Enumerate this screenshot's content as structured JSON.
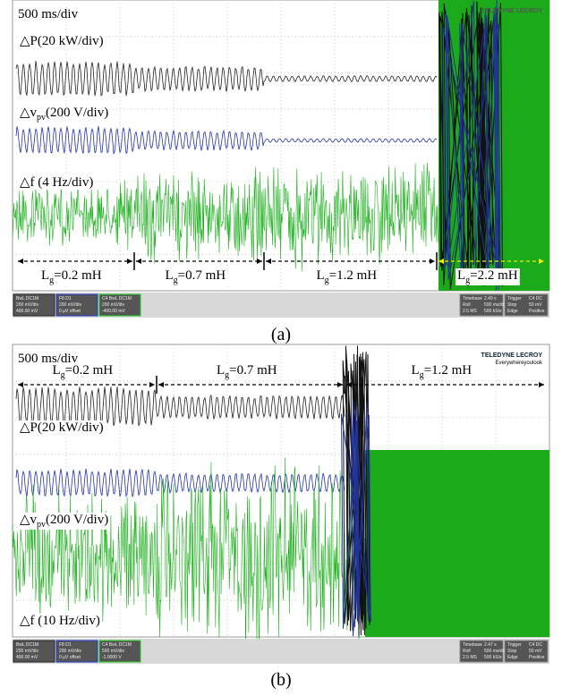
{
  "panels": [
    {
      "label": "(a)",
      "timebase": "500 ms/div",
      "brand": "TELEDYNE LECROY",
      "traces": [
        [
          {
            "t": "△P"
          },
          {
            "t": "(20 kW/div)"
          }
        ],
        [
          {
            "t": "△v"
          },
          {
            "t": "pv",
            "sub": true
          },
          {
            "t": "(200 V/div)"
          }
        ],
        [
          {
            "t": "△f"
          },
          {
            "t": " (4 Hz/div)"
          }
        ]
      ],
      "segments": [
        [
          {
            "t": "L"
          },
          {
            "t": "g",
            "sub": true
          },
          {
            "t": "=0.2 mH"
          }
        ],
        [
          {
            "t": "L"
          },
          {
            "t": "g",
            "sub": true
          },
          {
            "t": "=0.7 mH"
          }
        ],
        [
          {
            "t": "L"
          },
          {
            "t": "g",
            "sub": true
          },
          {
            "t": "=1.2 mH"
          }
        ],
        [
          {
            "t": "L"
          },
          {
            "t": "g",
            "sub": true
          },
          {
            "t": "=2.2 mH"
          }
        ]
      ],
      "status_left": [
        [
          "BwL DC1M",
          "200 mV/div",
          "400.00 mV"
        ],
        [
          "F8 D1",
          "200 mV/div",
          "0 µV offset"
        ],
        [
          "C4 BwL DC1M",
          "200 mV/div",
          "-400.00 mV"
        ]
      ],
      "status_right": [
        [
          "Timebase",
          "2.49 s",
          "Roll",
          "500 ms/div",
          "2.5 MS",
          "500 kS/s"
        ],
        [
          "Trigger",
          "C4 DC",
          "Stop",
          "50 mV",
          "Edge",
          "Positive"
        ]
      ]
    },
    {
      "label": "(b)",
      "timebase": "500 ms/div",
      "brand": "TELEDYNE LECROY",
      "slogan": "Everywhereyoulook",
      "traces": [
        [
          {
            "t": "△P"
          },
          {
            "t": "(20 kW/div)"
          }
        ],
        [
          {
            "t": "△v"
          },
          {
            "t": "pv",
            "sub": true
          },
          {
            "t": "(200 V/div)"
          }
        ],
        [
          {
            "t": "△f"
          },
          {
            "t": " (10 Hz/div)"
          }
        ]
      ],
      "segments": [
        [
          {
            "t": "L"
          },
          {
            "t": "g",
            "sub": true
          },
          {
            "t": "=0.2 mH"
          }
        ],
        [
          {
            "t": "L"
          },
          {
            "t": "g",
            "sub": true
          },
          {
            "t": "=0.7 mH"
          }
        ],
        [
          {
            "t": "L"
          },
          {
            "t": "g",
            "sub": true
          },
          {
            "t": "=1.2 mH"
          }
        ]
      ],
      "status_left": [
        [
          "BwL DC1M",
          "200 mV/div",
          "400.00 mV"
        ],
        [
          "F8 D1",
          "200 mV/div",
          "0 µV offset"
        ],
        [
          "C4 BwL DC1M",
          "500 mV/div",
          "-1.0000 V"
        ]
      ],
      "status_right": [
        [
          "Timebase",
          "2.47 s",
          "Roll",
          "500 ms/div",
          "2.5 MS",
          "500 kS/s"
        ],
        [
          "Trigger",
          "C4 DC",
          "Stop",
          "50 mV",
          "Edge",
          "Positive"
        ]
      ]
    }
  ]
}
